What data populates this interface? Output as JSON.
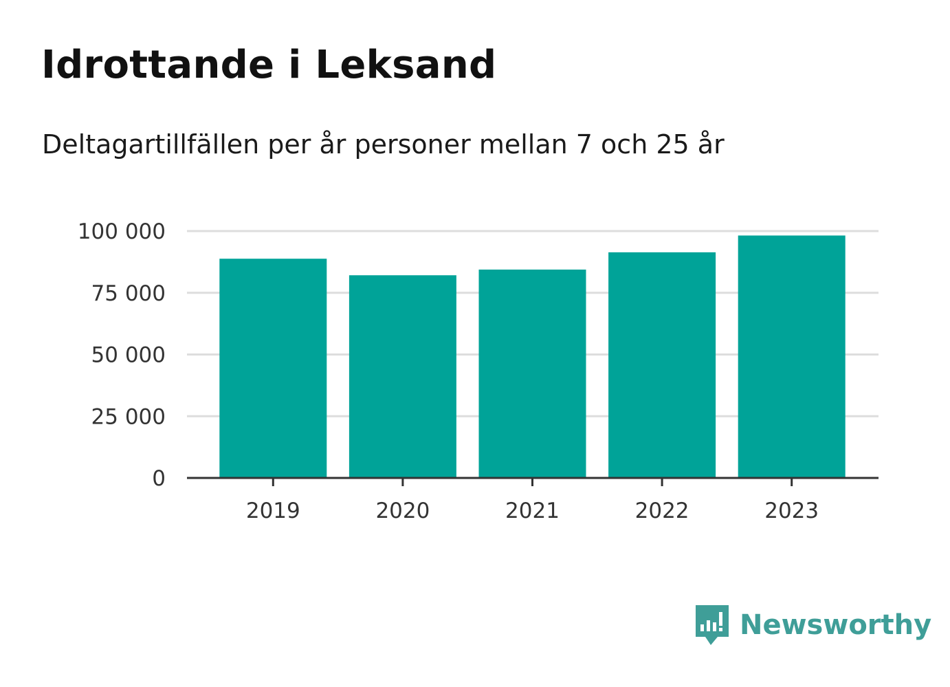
{
  "title": "Idrottande i Leksand",
  "subtitle": "Deltagartillfällen per år personer mellan 7 och 25 år",
  "brand": {
    "name": "Newsworthy",
    "icon": "newsworthy-logo-icon",
    "color": "#3f9e98"
  },
  "colors": {
    "bar": "#00a398",
    "grid": "#dddddd",
    "axis": "#333333"
  },
  "chart_data": {
    "type": "bar",
    "categories": [
      "2019",
      "2020",
      "2021",
      "2022",
      "2023"
    ],
    "values": [
      88800,
      82100,
      84400,
      91400,
      98200
    ],
    "ylim": [
      0,
      100000
    ],
    "yticks": [
      0,
      25000,
      50000,
      75000,
      100000
    ],
    "ytick_labels": [
      "0",
      "25 000",
      "50 000",
      "75 000",
      "100 000"
    ],
    "grid": true
  }
}
